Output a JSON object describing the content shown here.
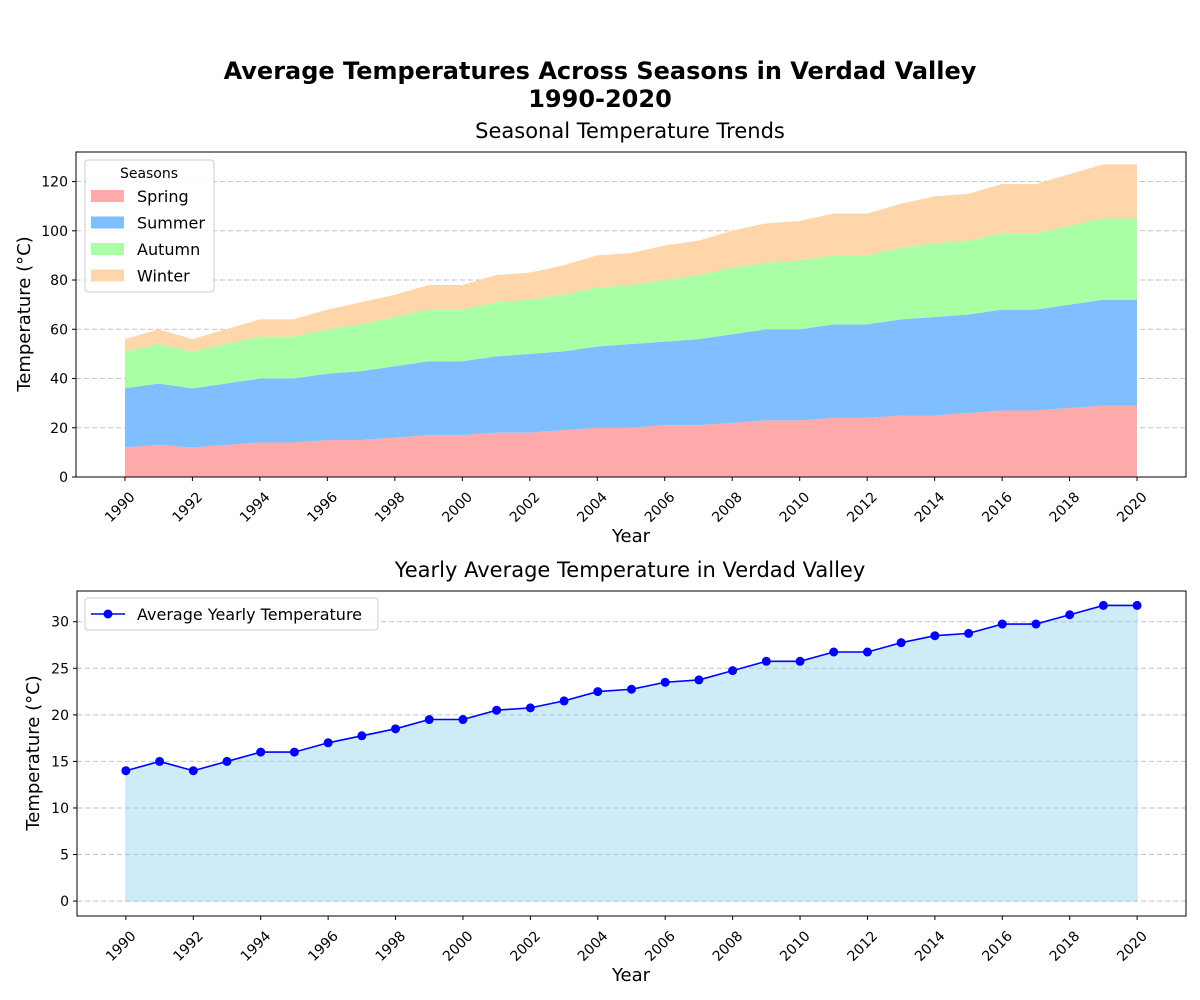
{
  "figure": {
    "title_line1": "Average Temperatures Across Seasons in Verdad Valley",
    "title_line2": "1990-2020"
  },
  "chart_data": [
    {
      "type": "area",
      "stacked": true,
      "title": "Seasonal Temperature Trends",
      "xlabel": "Year",
      "ylabel": "Temperature (°C)",
      "x": [
        1990,
        1991,
        1992,
        1993,
        1994,
        1995,
        1996,
        1997,
        1998,
        1999,
        2000,
        2001,
        2002,
        2003,
        2004,
        2005,
        2006,
        2007,
        2008,
        2009,
        2010,
        2011,
        2012,
        2013,
        2014,
        2015,
        2016,
        2017,
        2018,
        2019,
        2020
      ],
      "xticks": [
        1990,
        1992,
        1994,
        1996,
        1998,
        2000,
        2002,
        2004,
        2006,
        2008,
        2010,
        2012,
        2014,
        2016,
        2018,
        2020
      ],
      "yticks": [
        0,
        20,
        40,
        60,
        80,
        100,
        120
      ],
      "ylim": [
        0,
        132
      ],
      "xlim": [
        1988.55,
        2021.45
      ],
      "grid": true,
      "legend": {
        "title": "Seasons",
        "placement": "top-left"
      },
      "series": [
        {
          "name": "Spring",
          "color": "#ffaaaa",
          "values": [
            12,
            13,
            12,
            13,
            14,
            14,
            15,
            15,
            16,
            17,
            17,
            18,
            18,
            19,
            20,
            20,
            21,
            21,
            22,
            23,
            23,
            24,
            24,
            25,
            25,
            26,
            27,
            27,
            28,
            29,
            29
          ]
        },
        {
          "name": "Summer",
          "color": "#80bfff",
          "values": [
            24,
            25,
            24,
            25,
            26,
            26,
            27,
            28,
            29,
            30,
            30,
            31,
            32,
            32,
            33,
            34,
            34,
            35,
            36,
            37,
            37,
            38,
            38,
            39,
            40,
            40,
            41,
            41,
            42,
            43,
            43
          ]
        },
        {
          "name": "Autumn",
          "color": "#aaffa5",
          "values": [
            15,
            16,
            15,
            16,
            17,
            17,
            18,
            19,
            20,
            21,
            21,
            22,
            22,
            23,
            24,
            24,
            25,
            26,
            27,
            27,
            28,
            28,
            28,
            29,
            30,
            30,
            31,
            31,
            32,
            33,
            33
          ]
        },
        {
          "name": "Winter",
          "color": "#ffd5aa",
          "values": [
            5,
            6,
            5,
            6,
            7,
            7,
            8,
            9,
            9,
            10,
            10,
            11,
            11,
            12,
            13,
            13,
            14,
            14,
            15,
            16,
            16,
            17,
            17,
            18,
            19,
            19,
            20,
            20,
            21,
            22,
            22
          ]
        }
      ]
    },
    {
      "type": "line",
      "title": "Yearly Average Temperature in Verdad Valley",
      "xlabel": "Year",
      "ylabel": "Temperature (°C)",
      "x": [
        1990,
        1991,
        1992,
        1993,
        1994,
        1995,
        1996,
        1997,
        1998,
        1999,
        2000,
        2001,
        2002,
        2003,
        2004,
        2005,
        2006,
        2007,
        2008,
        2009,
        2010,
        2011,
        2012,
        2013,
        2014,
        2015,
        2016,
        2017,
        2018,
        2019,
        2020
      ],
      "xticks": [
        1990,
        1992,
        1994,
        1996,
        1998,
        2000,
        2002,
        2004,
        2006,
        2008,
        2010,
        2012,
        2014,
        2016,
        2018,
        2020
      ],
      "yticks": [
        0,
        5,
        10,
        15,
        20,
        25,
        30
      ],
      "ylim": [
        -1.6,
        33.3
      ],
      "xlim": [
        1988.55,
        2021.45
      ],
      "grid": true,
      "fill_color": "#87ceeb",
      "line_color": "#0000ff",
      "legend": {
        "placement": "top-left"
      },
      "series": [
        {
          "name": "Average Yearly Temperature",
          "values": [
            14,
            15,
            14,
            15,
            16,
            16,
            17,
            17.75,
            18.5,
            19.5,
            19.5,
            20.5,
            20.75,
            21.5,
            22.5,
            22.75,
            23.5,
            23.75,
            24.75,
            25.75,
            25.75,
            26.75,
            26.75,
            27.75,
            28.5,
            28.75,
            29.75,
            29.75,
            30.75,
            31.75,
            31.75
          ]
        }
      ]
    }
  ]
}
